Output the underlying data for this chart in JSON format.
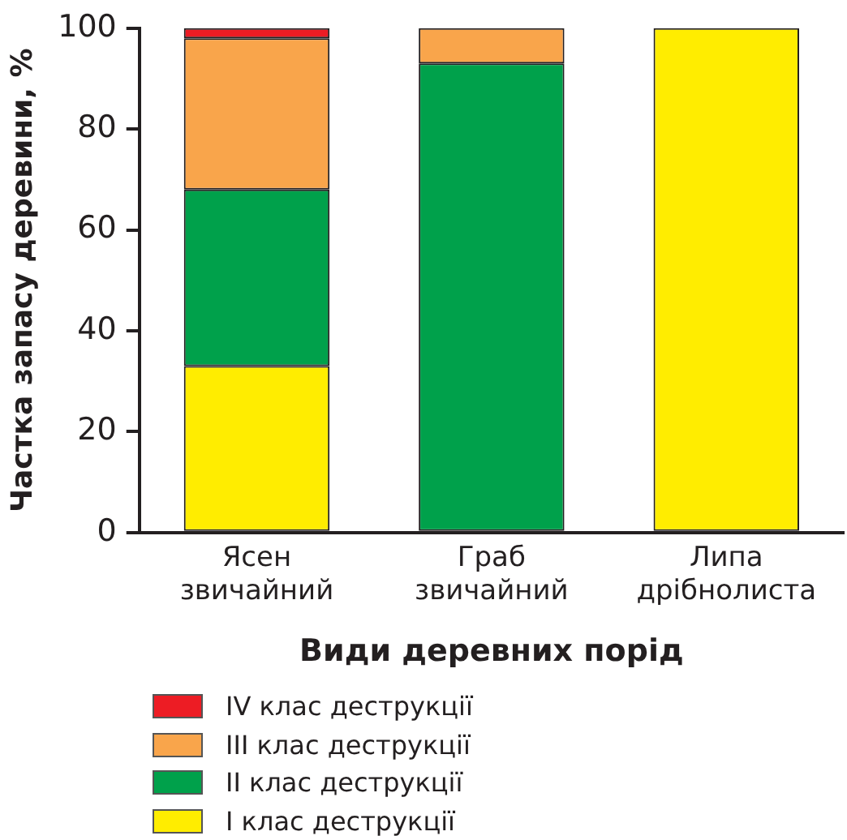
{
  "chart_data": {
    "type": "bar",
    "stacked": true,
    "xlabel": "Види деревних порід",
    "ylabel": "Частка запасу деревини, %",
    "categories": [
      "Ясен звичайний",
      "Граб звичайний",
      "Липа дрібнолиста"
    ],
    "series": [
      {
        "name": "I клас деструкції",
        "color": "#ffed00",
        "values": [
          33,
          0,
          100
        ]
      },
      {
        "name": "II клас деструкції",
        "color": "#00a14b",
        "values": [
          35,
          93,
          0
        ]
      },
      {
        "name": "III клас деструкції",
        "color": "#f9a54b",
        "values": [
          30,
          7,
          0
        ]
      },
      {
        "name": "IV клас деструкції",
        "color": "#ed1c24",
        "values": [
          2,
          0,
          0
        ]
      }
    ],
    "ylim": [
      0,
      100
    ],
    "yticks": [
      0,
      20,
      40,
      60,
      80,
      100
    ],
    "grid": false,
    "legend": "bottom"
  }
}
